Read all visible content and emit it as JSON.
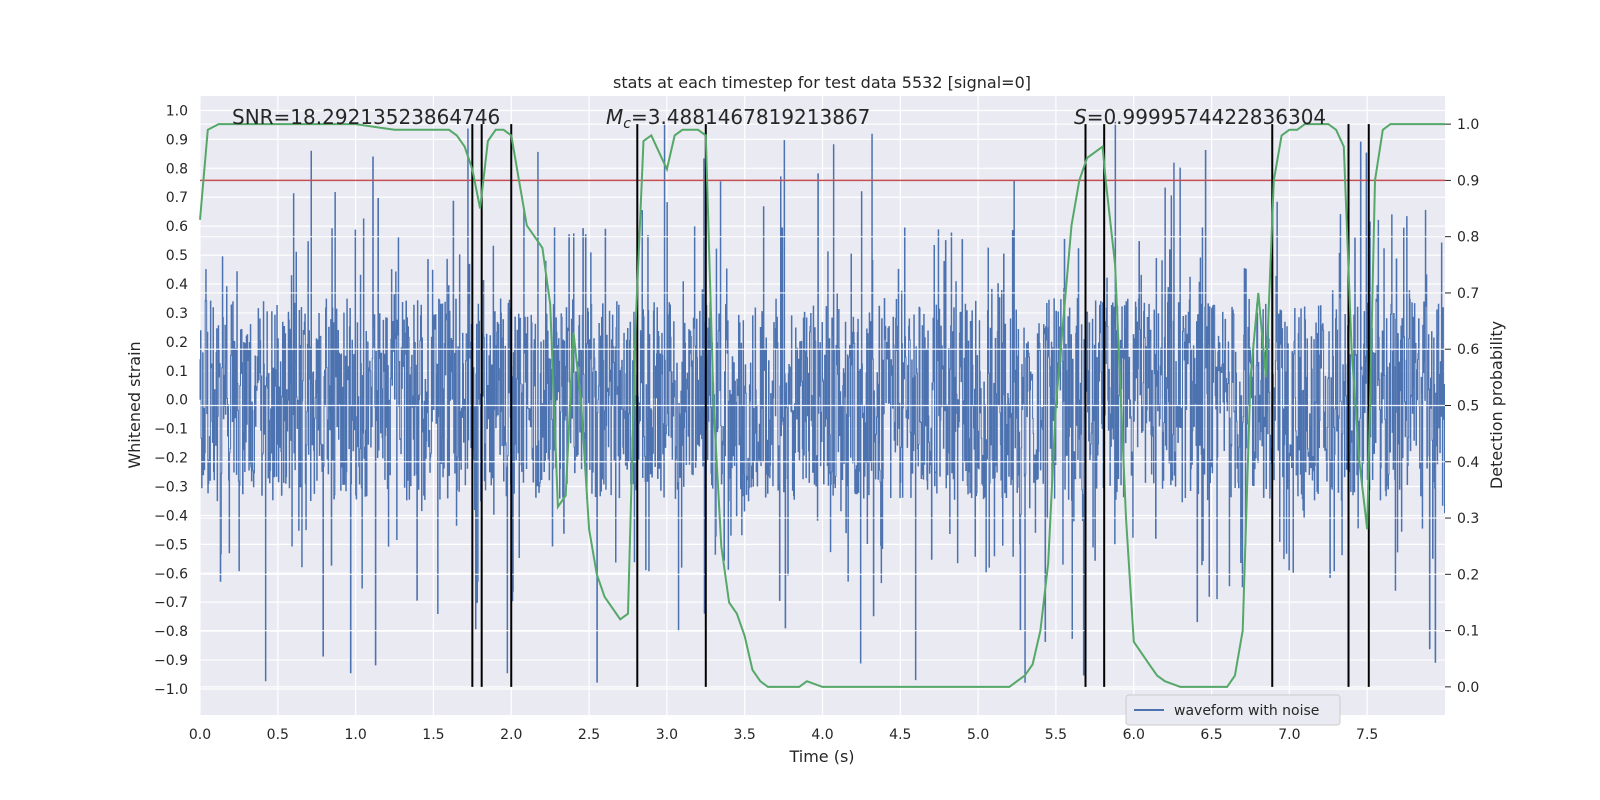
{
  "chart_data": {
    "type": "line",
    "title": "stats at each timestep for test data 5532 [signal=0]",
    "xlabel": "Time (s)",
    "ylabel": "Whitened strain",
    "y2label": "Detection probability",
    "xlim": [
      0.0,
      8.0
    ],
    "ylim": [
      -1.09,
      1.05
    ],
    "y2lim": [
      -0.05,
      1.05
    ],
    "x_ticks": [
      0.0,
      0.5,
      1.0,
      1.5,
      2.0,
      2.5,
      3.0,
      3.5,
      4.0,
      4.5,
      5.0,
      5.5,
      6.0,
      6.5,
      7.0,
      7.5
    ],
    "x_tick_labels": [
      "0.0",
      "0.5",
      "1.0",
      "1.5",
      "2.0",
      "2.5",
      "3.0",
      "3.5",
      "4.0",
      "4.5",
      "5.0",
      "5.5",
      "6.0",
      "6.5",
      "7.0",
      "7.5"
    ],
    "y_ticks": [
      1.0,
      0.9,
      0.8,
      0.7,
      0.6,
      0.5,
      0.4,
      0.3,
      0.2,
      0.1,
      0.0,
      -0.1,
      -0.2,
      -0.3,
      -0.4,
      -0.5,
      -0.6,
      -0.7,
      -0.8,
      -0.9,
      -1.0
    ],
    "y_tick_labels": [
      "1.0",
      "0.9",
      "0.8",
      "0.7",
      "0.6",
      "0.5",
      "0.4",
      "0.3",
      "0.2",
      "0.1",
      "0.0",
      "−0.1",
      "−0.2",
      "−0.3",
      "−0.4",
      "−0.5",
      "−0.6",
      "−0.7",
      "−0.8",
      "−0.9",
      "−1.0"
    ],
    "y2_ticks": [
      1.0,
      0.9,
      0.8,
      0.7,
      0.6,
      0.5,
      0.4,
      0.3,
      0.2,
      0.1,
      0.0
    ],
    "y2_tick_labels": [
      "1.0",
      "0.9",
      "0.8",
      "0.7",
      "0.6",
      "0.5",
      "0.4",
      "0.3",
      "0.2",
      "0.1",
      "0.0"
    ],
    "annotations": {
      "snr": "SNR=18.29213523864746",
      "mc_value": "=3.4881467819213867",
      "s_value": "=0.9999574422836304",
      "mc_symbol": "M",
      "mc_subscript": "c",
      "s_symbol": "S"
    },
    "threshold": {
      "y2": 0.9,
      "color": "#c44e52"
    },
    "vertical_lines_x": [
      1.75,
      1.81,
      2.0,
      2.81,
      3.25,
      5.69,
      5.81,
      6.89,
      7.38,
      7.51
    ],
    "series": [
      {
        "name": "waveform with noise",
        "color": "#4c72b0",
        "kind": "noise",
        "amplitude_typical": 0.35,
        "amplitude_max": 0.98
      },
      {
        "name": "detection probability",
        "color": "#55a868",
        "axis": "y2",
        "x": [
          0.0,
          0.05,
          0.12,
          0.25,
          0.5,
          0.75,
          1.0,
          1.25,
          1.4,
          1.5,
          1.6,
          1.65,
          1.7,
          1.75,
          1.8,
          1.85,
          1.9,
          1.95,
          2.0,
          2.05,
          2.1,
          2.2,
          2.25,
          2.3,
          2.35,
          2.4,
          2.45,
          2.5,
          2.55,
          2.6,
          2.65,
          2.7,
          2.75,
          2.8,
          2.85,
          2.9,
          2.95,
          3.0,
          3.05,
          3.1,
          3.15,
          3.2,
          3.25,
          3.3,
          3.35,
          3.4,
          3.45,
          3.5,
          3.55,
          3.6,
          3.65,
          3.75,
          3.85,
          3.9,
          4.0,
          4.2,
          4.5,
          4.8,
          5.0,
          5.2,
          5.25,
          5.3,
          5.35,
          5.4,
          5.45,
          5.5,
          5.6,
          5.65,
          5.7,
          5.75,
          5.8,
          5.82,
          5.88,
          5.95,
          6.0,
          6.1,
          6.15,
          6.2,
          6.3,
          6.4,
          6.5,
          6.6,
          6.65,
          6.7,
          6.75,
          6.8,
          6.85,
          6.9,
          6.95,
          7.0,
          7.05,
          7.1,
          7.15,
          7.2,
          7.25,
          7.3,
          7.35,
          7.4,
          7.45,
          7.5,
          7.55,
          7.6,
          7.65,
          7.7,
          7.75,
          7.8,
          7.85,
          7.9,
          7.95,
          8.0
        ],
        "y": [
          0.83,
          0.99,
          1.0,
          1.0,
          1.0,
          1.0,
          1.0,
          0.99,
          0.99,
          0.99,
          0.99,
          0.98,
          0.96,
          0.92,
          0.85,
          0.97,
          0.99,
          0.99,
          0.98,
          0.9,
          0.82,
          0.78,
          0.68,
          0.32,
          0.34,
          0.63,
          0.5,
          0.28,
          0.2,
          0.16,
          0.14,
          0.12,
          0.13,
          0.65,
          0.97,
          0.98,
          0.95,
          0.92,
          0.98,
          0.99,
          0.99,
          0.99,
          0.98,
          0.5,
          0.25,
          0.15,
          0.13,
          0.09,
          0.03,
          0.01,
          0.0,
          0.0,
          0.0,
          0.01,
          0.0,
          0.0,
          0.0,
          0.0,
          0.0,
          0.0,
          0.01,
          0.02,
          0.04,
          0.1,
          0.22,
          0.5,
          0.82,
          0.9,
          0.94,
          0.95,
          0.96,
          0.9,
          0.75,
          0.3,
          0.08,
          0.04,
          0.02,
          0.01,
          0.0,
          0.0,
          0.0,
          0.0,
          0.02,
          0.1,
          0.55,
          0.7,
          0.55,
          0.9,
          0.98,
          0.99,
          0.99,
          1.0,
          1.0,
          1.0,
          1.0,
          0.99,
          0.96,
          0.6,
          0.4,
          0.28,
          0.9,
          0.99,
          1.0,
          1.0,
          1.0,
          1.0,
          1.0,
          1.0,
          1.0,
          1.0
        ]
      }
    ],
    "legend": {
      "placement": "bottom-right",
      "entries": [
        "waveform with noise"
      ]
    },
    "grid": true
  },
  "colors": {
    "plot_background": "#eaeaf2",
    "grid": "#ffffff",
    "vline": "#000000"
  }
}
